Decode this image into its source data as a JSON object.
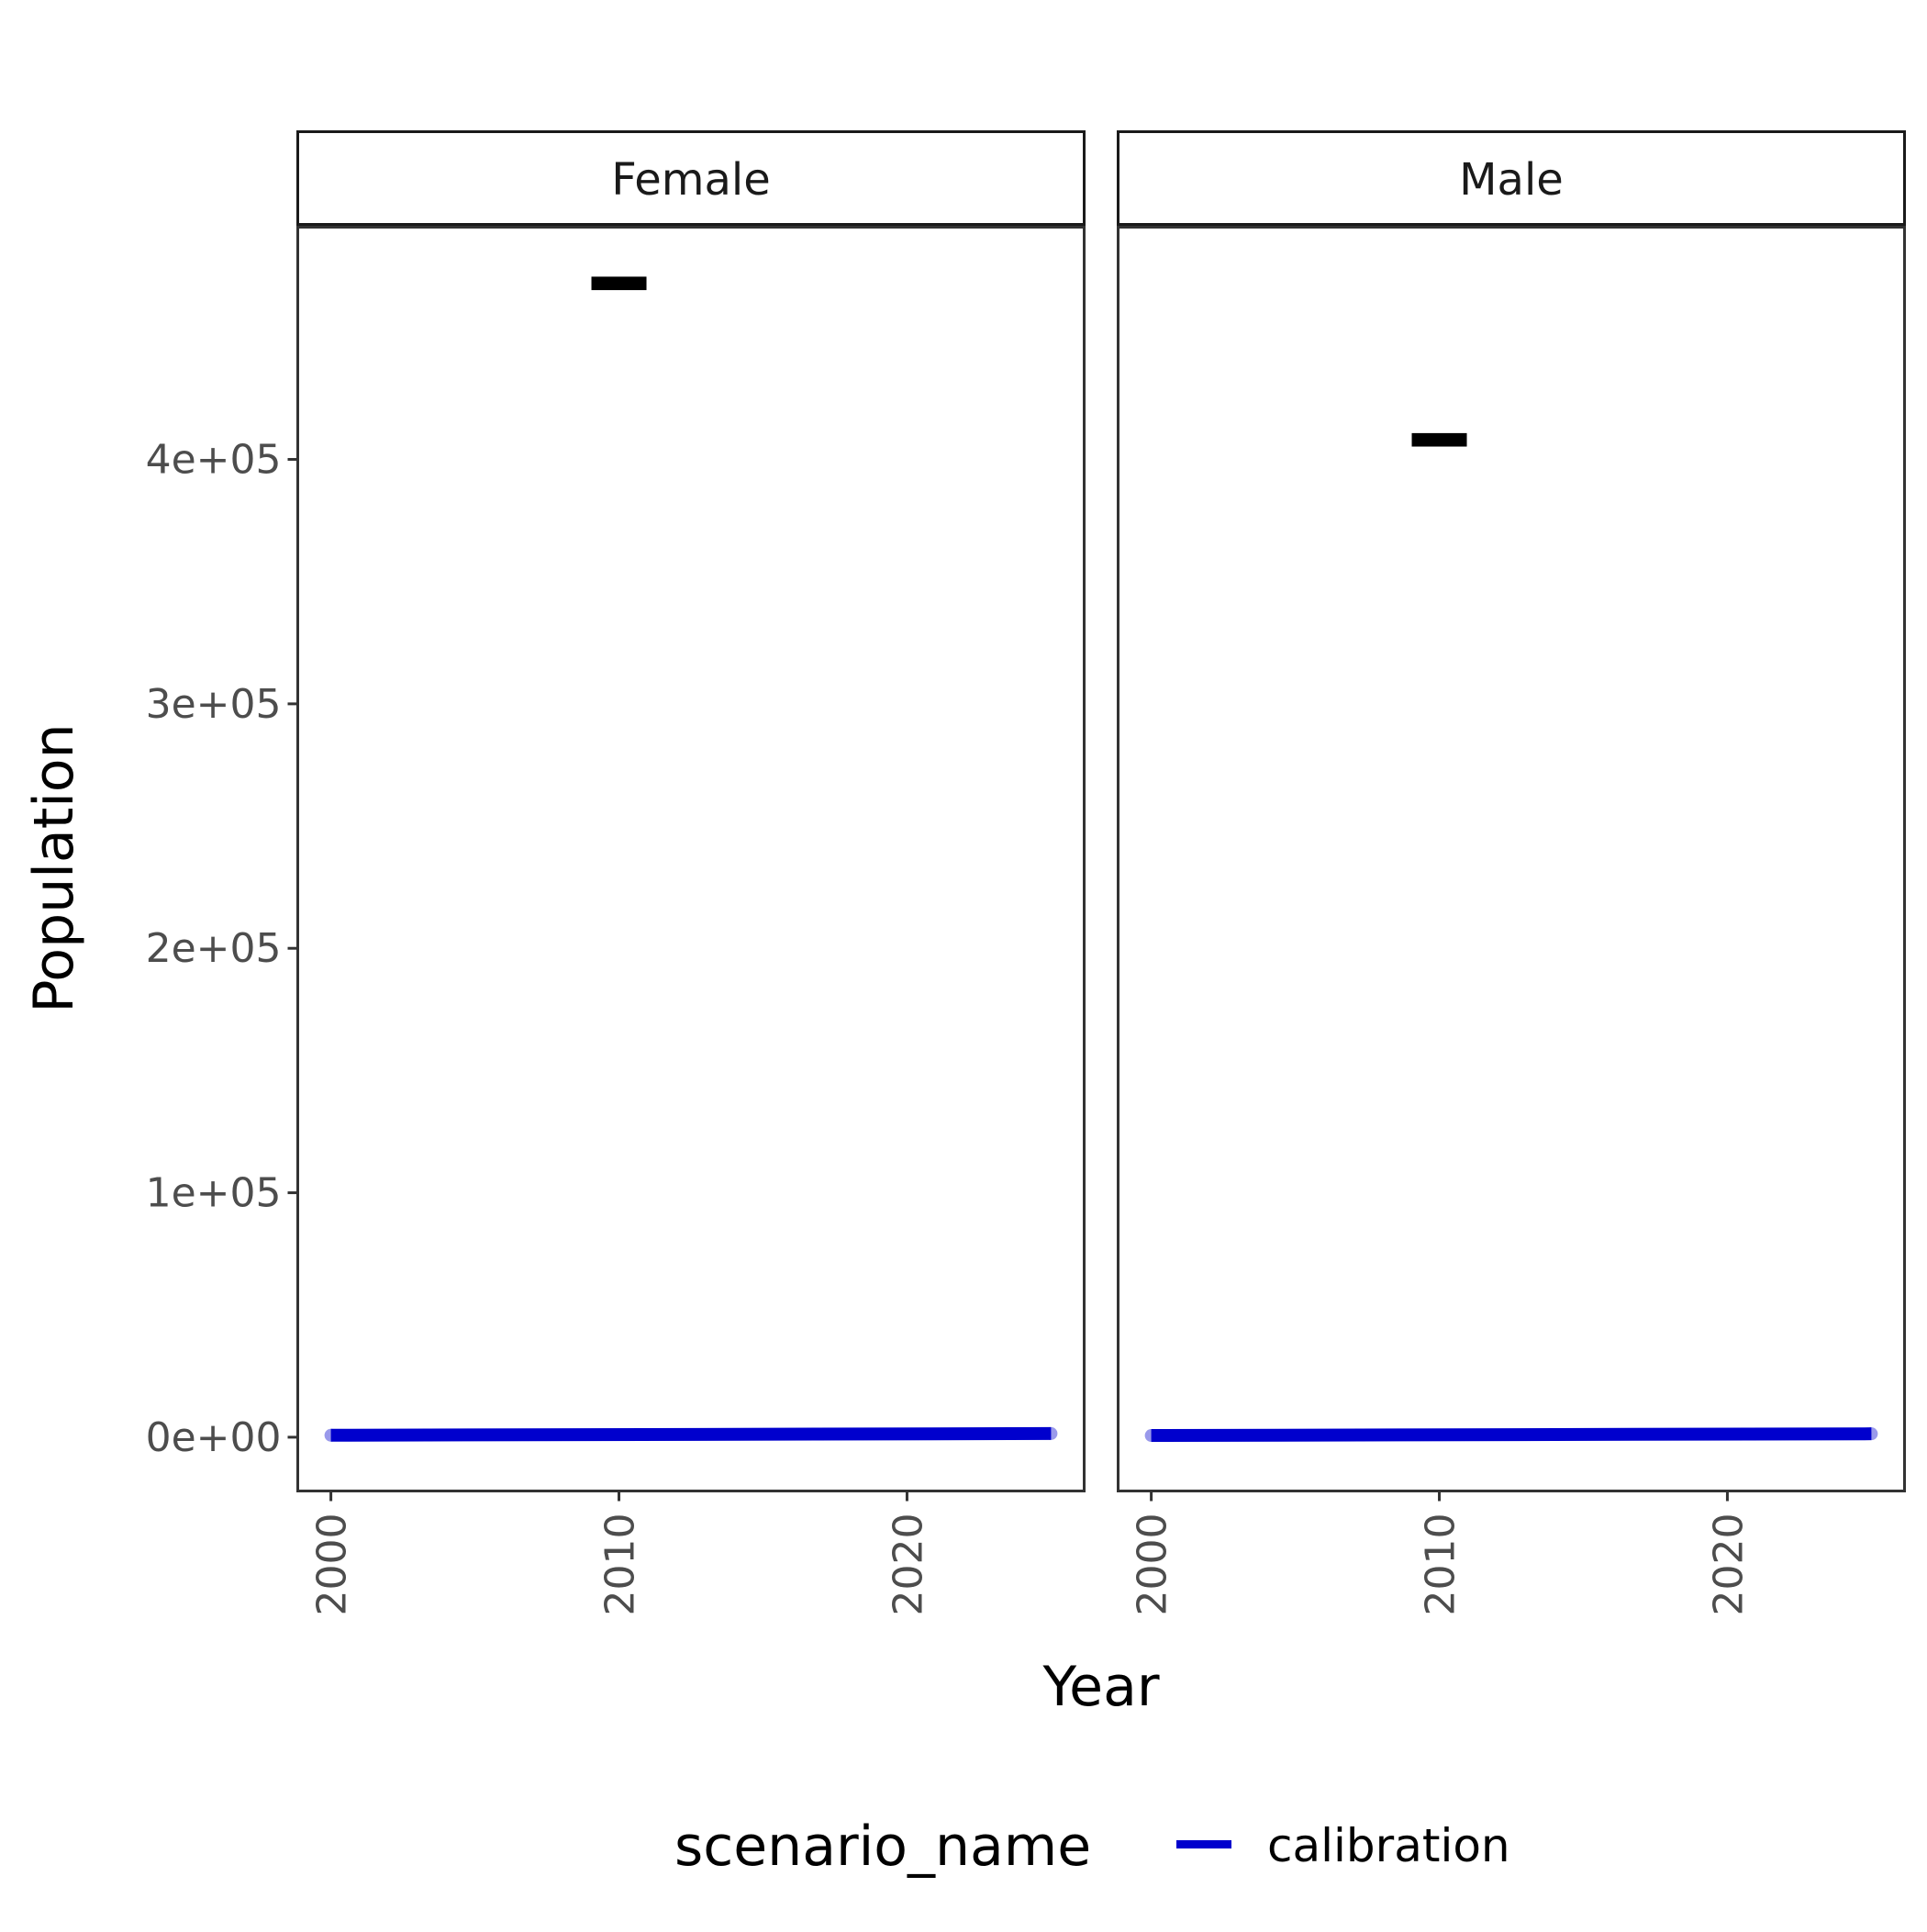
{
  "chart_data": {
    "type": "line",
    "facet_variable": "sex",
    "facets": [
      "Female",
      "Male"
    ],
    "xlabel": "Year",
    "ylabel": "Population",
    "xlim": [
      1998.85,
      2026.15
    ],
    "ylim": [
      -22000,
      495000
    ],
    "x_ticks": [
      2000,
      2010,
      2020
    ],
    "x_tick_labels": [
      "2000",
      "2010",
      "2020"
    ],
    "y_ticks": [
      0,
      100000,
      200000,
      300000,
      400000
    ],
    "y_tick_labels": [
      "0e+00",
      "1e+05",
      "2e+05",
      "3e+05",
      "4e+05"
    ],
    "legend": {
      "title": "scenario_name",
      "position": "bottom",
      "entries": [
        {
          "label": "calibration",
          "color": "#0000CD"
        }
      ]
    },
    "series": [
      {
        "name": "calibration",
        "color": "#0000CD",
        "panels": {
          "Female": {
            "x": [
              2000,
              2025
            ],
            "y": [
              800,
              1500
            ]
          },
          "Male": {
            "x": [
              2000,
              2025
            ],
            "y": [
              700,
              1400
            ]
          }
        }
      }
    ],
    "observed": {
      "color": "#000000",
      "panels": {
        "Female": {
          "x": 2010,
          "y": 472000,
          "ymin": 470000,
          "ymax": 474000
        },
        "Male": {
          "x": 2010,
          "y": 408000,
          "ymin": 406000,
          "ymax": 410000
        }
      }
    }
  }
}
